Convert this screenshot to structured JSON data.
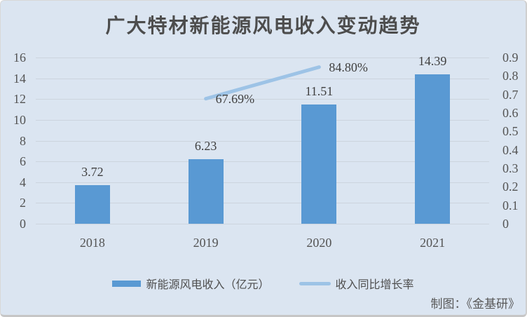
{
  "credit": "制图：《金基研》",
  "chart_data": {
    "type": "bar",
    "title": "广大特材新能源风电收入变动趋势",
    "categories": [
      "2018",
      "2019",
      "2020",
      "2021"
    ],
    "series": [
      {
        "name": "新能源风电收入（亿元）",
        "type": "bar",
        "axis": "left",
        "color": "#5999d3",
        "values": [
          3.72,
          6.23,
          11.51,
          14.39
        ],
        "data_labels": [
          "3.72",
          "6.23",
          "11.51",
          "14.39"
        ]
      },
      {
        "name": "收入同比增长率",
        "type": "line",
        "axis": "right",
        "color": "#9dc3e6",
        "values": [
          null,
          0.6769,
          0.848,
          null
        ],
        "data_labels": [
          "",
          "67.69%",
          "84.80%",
          ""
        ]
      }
    ],
    "left_axis": {
      "min": 0,
      "max": 16,
      "step": 2,
      "ticks": [
        "16",
        "14",
        "12",
        "10",
        "8",
        "6",
        "4",
        "2",
        "0"
      ]
    },
    "right_axis": {
      "min": 0,
      "max": 0.9,
      "step": 0.1,
      "ticks": [
        "0.9",
        "0.8",
        "0.7",
        "0.6",
        "0.5",
        "0.4",
        "0.3",
        "0.2",
        "0.1",
        "0"
      ]
    },
    "grid": true,
    "legend_position": "bottom",
    "background_color": "#dbe5f1"
  }
}
